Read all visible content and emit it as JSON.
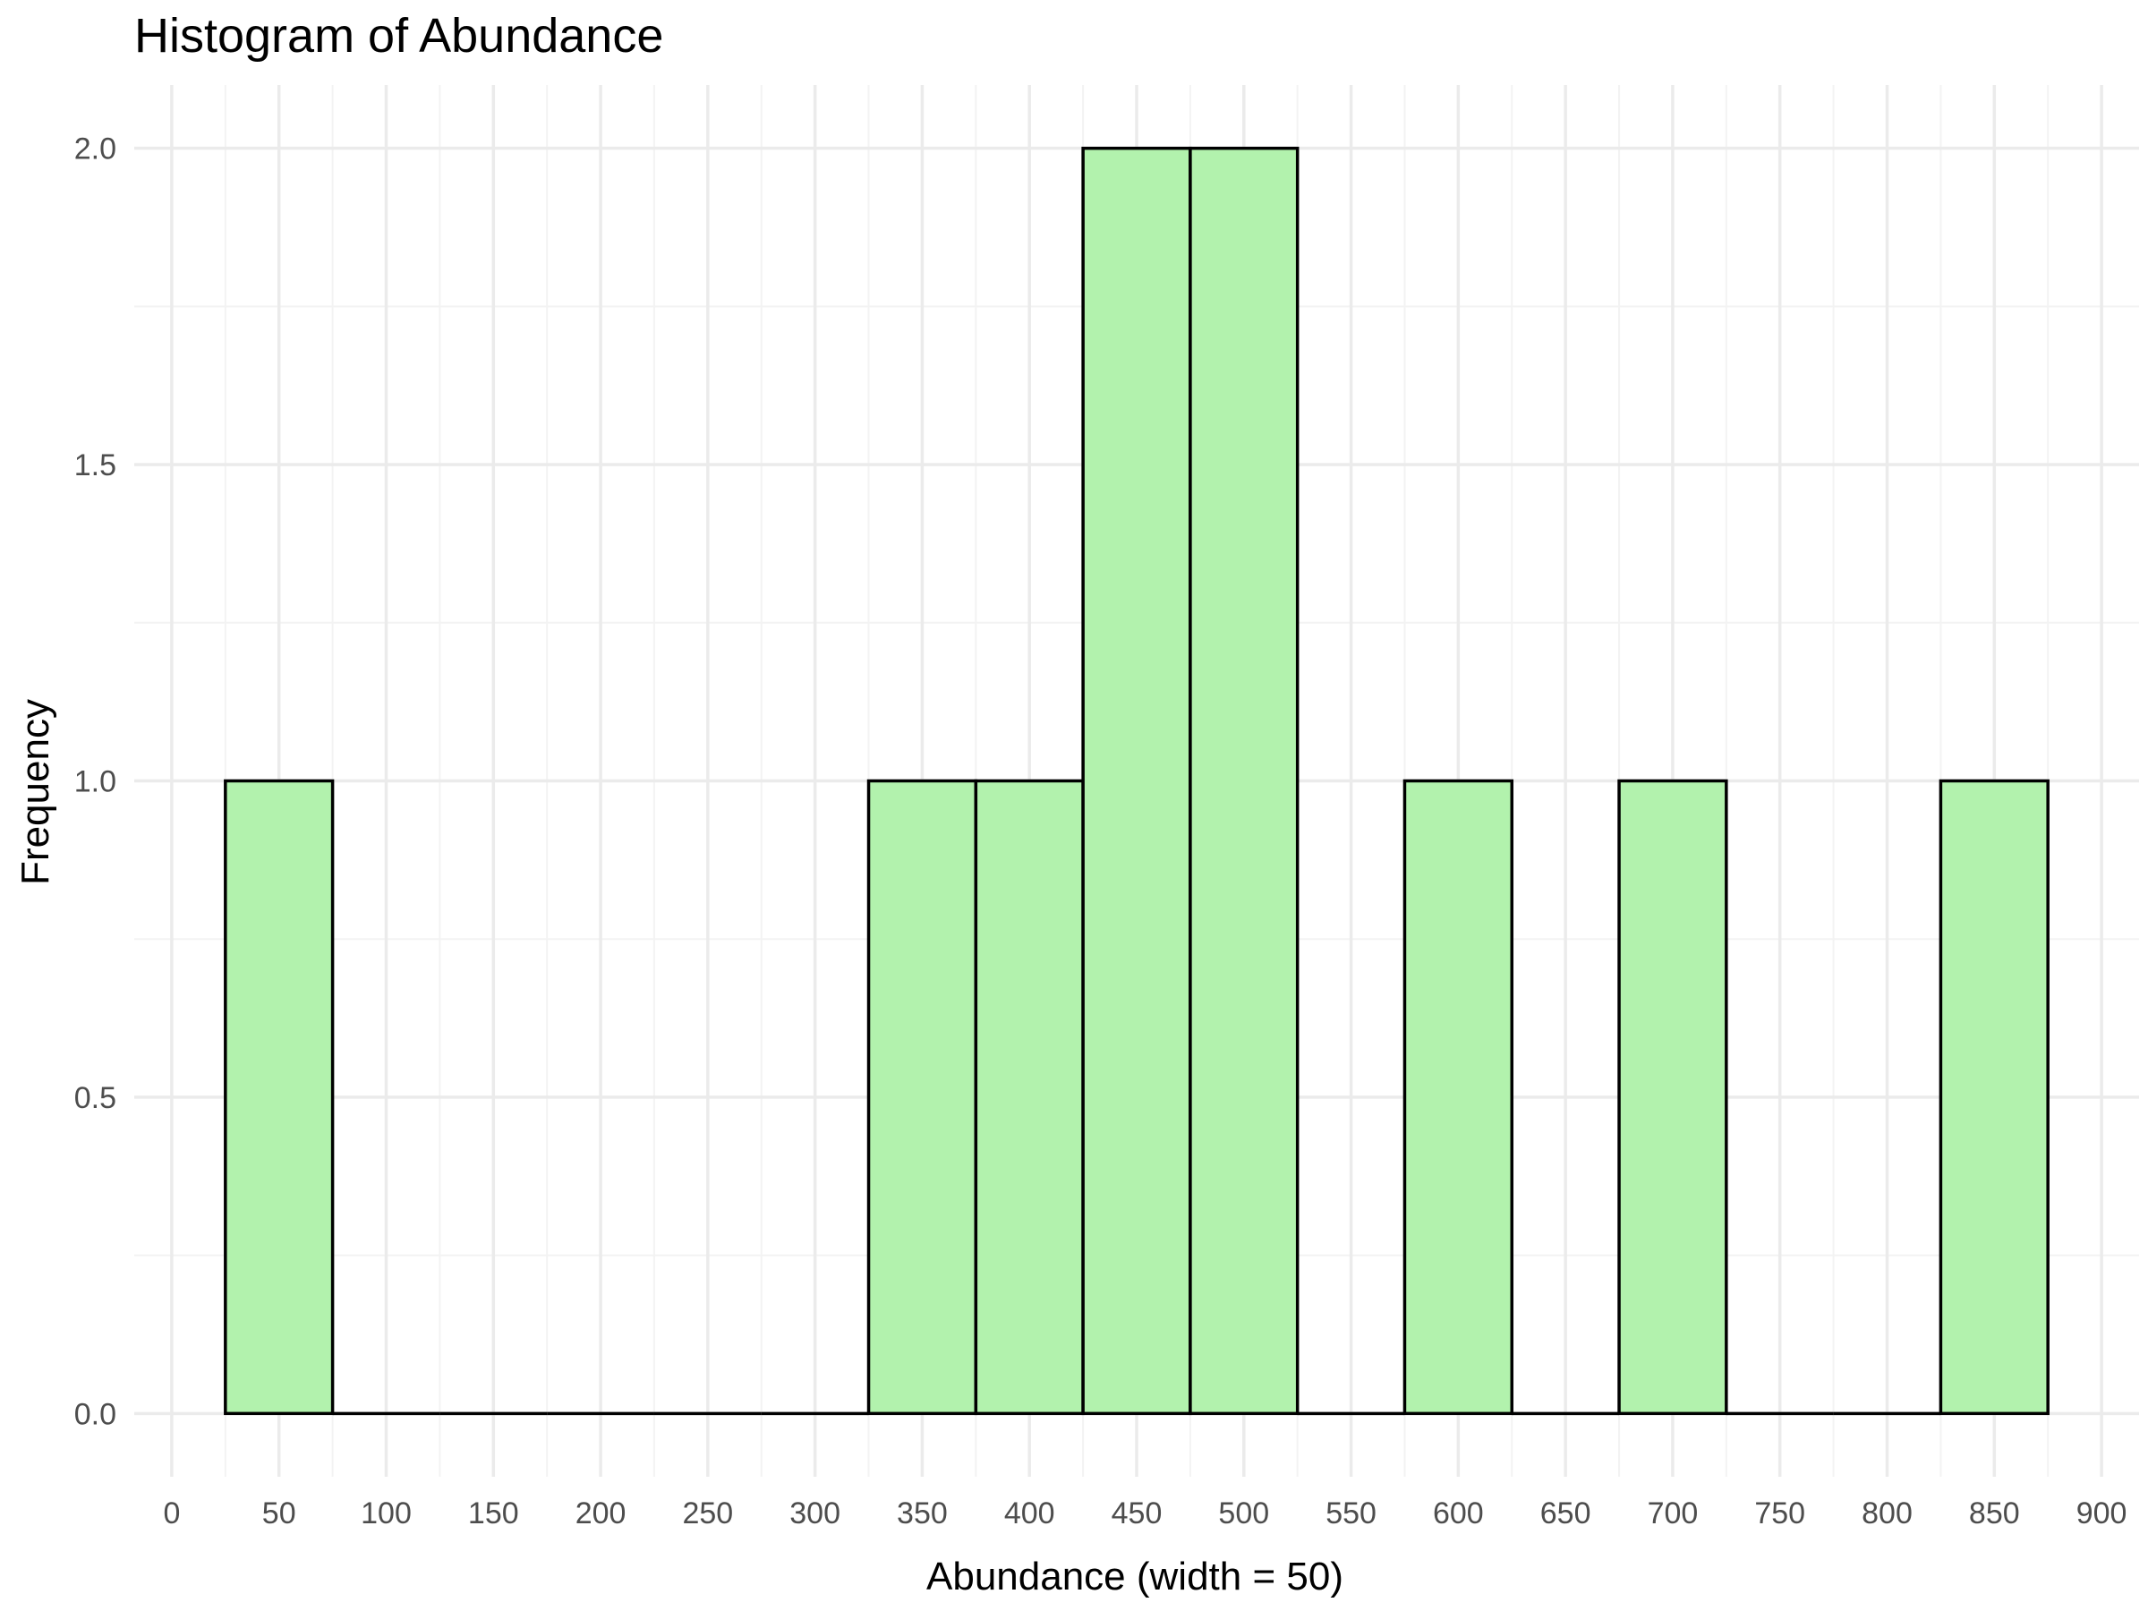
{
  "chart_data": {
    "type": "bar",
    "subtype": "histogram",
    "title": "Histogram of Abundance",
    "xlabel": "Abundance (width = 50)",
    "ylabel": "Frequency",
    "bin_width": 50,
    "bins": [
      {
        "start": 25,
        "end": 75,
        "count": 1
      },
      {
        "start": 75,
        "end": 125,
        "count": 0
      },
      {
        "start": 125,
        "end": 175,
        "count": 0
      },
      {
        "start": 175,
        "end": 225,
        "count": 0
      },
      {
        "start": 225,
        "end": 275,
        "count": 0
      },
      {
        "start": 275,
        "end": 325,
        "count": 0
      },
      {
        "start": 325,
        "end": 375,
        "count": 1
      },
      {
        "start": 375,
        "end": 425,
        "count": 1
      },
      {
        "start": 425,
        "end": 475,
        "count": 2
      },
      {
        "start": 475,
        "end": 525,
        "count": 2
      },
      {
        "start": 525,
        "end": 575,
        "count": 0
      },
      {
        "start": 575,
        "end": 625,
        "count": 1
      },
      {
        "start": 625,
        "end": 675,
        "count": 0
      },
      {
        "start": 675,
        "end": 725,
        "count": 1
      },
      {
        "start": 725,
        "end": 775,
        "count": 0
      },
      {
        "start": 775,
        "end": 825,
        "count": 0
      },
      {
        "start": 825,
        "end": 875,
        "count": 1
      }
    ],
    "x_ticks": [
      "0",
      "50",
      "100",
      "150",
      "200",
      "250",
      "300",
      "350",
      "400",
      "450",
      "500",
      "550",
      "600",
      "650",
      "700",
      "750",
      "800",
      "850",
      "900"
    ],
    "y_ticks": [
      "0.0",
      "0.5",
      "1.0",
      "1.5",
      "2.0"
    ],
    "xlim": [
      -17.5,
      917.5
    ],
    "ylim": [
      -0.1,
      2.1
    ],
    "grid": true,
    "legend": "none",
    "colors": {
      "bar_fill": "#b2f2ad",
      "bar_stroke": "#000000",
      "grid_major": "#ebebeb",
      "grid_minor": "#f3f3f3",
      "tick_text": "#4d4d4d"
    }
  }
}
